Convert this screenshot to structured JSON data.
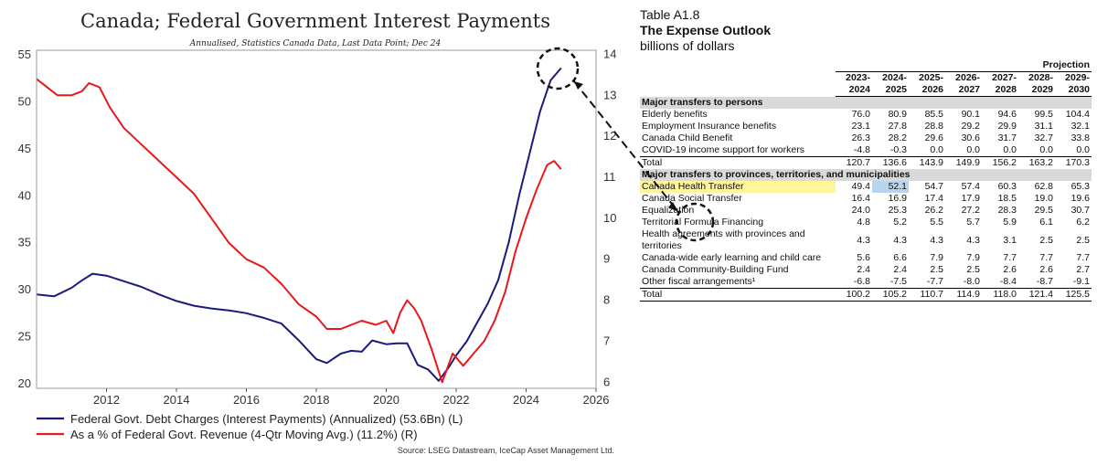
{
  "chart_data": {
    "type": "line",
    "title": "Canada; Federal Government Interest Payments",
    "subtitle": "Annualised, Statistics Canada Data, Last Data Point; Dec 24",
    "x_ticks": [
      2012,
      2014,
      2016,
      2018,
      2020,
      2022,
      2024,
      2026
    ],
    "xlim": [
      2010.0,
      2026.0
    ],
    "y_left_ticks": [
      20,
      25,
      30,
      35,
      40,
      45,
      50,
      55
    ],
    "ylim_left": [
      19.5,
      55.5
    ],
    "y_right_ticks": [
      6,
      7,
      8,
      9,
      10,
      11,
      12,
      13,
      14
    ],
    "ylim_right": [
      5.85,
      14.1
    ],
    "series": [
      {
        "name": "Federal Govt. Debt Charges (Interest Payments) (Annualized) (53.6Bn) (L)",
        "axis": "left",
        "color": "#1a1a7e",
        "points": [
          [
            2010.0,
            29.5
          ],
          [
            2010.5,
            29.3
          ],
          [
            2011.0,
            30.2
          ],
          [
            2011.3,
            31.0
          ],
          [
            2011.6,
            31.7
          ],
          [
            2012.0,
            31.5
          ],
          [
            2012.5,
            30.9
          ],
          [
            2013.0,
            30.3
          ],
          [
            2013.5,
            29.5
          ],
          [
            2014.0,
            28.8
          ],
          [
            2014.5,
            28.3
          ],
          [
            2015.0,
            28.0
          ],
          [
            2015.5,
            27.8
          ],
          [
            2016.0,
            27.5
          ],
          [
            2016.5,
            27.0
          ],
          [
            2017.0,
            26.4
          ],
          [
            2017.5,
            24.6
          ],
          [
            2018.0,
            22.6
          ],
          [
            2018.3,
            22.2
          ],
          [
            2018.7,
            23.2
          ],
          [
            2019.0,
            23.5
          ],
          [
            2019.3,
            23.4
          ],
          [
            2019.6,
            24.6
          ],
          [
            2020.0,
            24.2
          ],
          [
            2020.3,
            24.3
          ],
          [
            2020.6,
            24.3
          ],
          [
            2020.9,
            22.0
          ],
          [
            2021.2,
            21.5
          ],
          [
            2021.5,
            20.3
          ],
          [
            2021.8,
            21.8
          ],
          [
            2022.0,
            23.0
          ],
          [
            2022.3,
            24.5
          ],
          [
            2022.6,
            26.5
          ],
          [
            2022.9,
            28.5
          ],
          [
            2023.2,
            31.0
          ],
          [
            2023.5,
            35.0
          ],
          [
            2023.8,
            40.0
          ],
          [
            2024.1,
            44.5
          ],
          [
            2024.4,
            49.0
          ],
          [
            2024.7,
            52.3
          ],
          [
            2025.0,
            53.6
          ]
        ]
      },
      {
        "name": "As a % of Federal Govt. Revenue (4-Qtr Moving Avg.) (11.2%) (R)",
        "axis": "right",
        "color": "#e8191b",
        "points": [
          [
            2010.0,
            13.4
          ],
          [
            2010.3,
            13.2
          ],
          [
            2010.6,
            13.0
          ],
          [
            2011.0,
            13.0
          ],
          [
            2011.3,
            13.1
          ],
          [
            2011.5,
            13.3
          ],
          [
            2011.8,
            13.2
          ],
          [
            2012.1,
            12.7
          ],
          [
            2012.5,
            12.2
          ],
          [
            2013.0,
            11.8
          ],
          [
            2013.5,
            11.4
          ],
          [
            2014.0,
            11.0
          ],
          [
            2014.5,
            10.6
          ],
          [
            2015.0,
            10.0
          ],
          [
            2015.5,
            9.4
          ],
          [
            2016.0,
            9.0
          ],
          [
            2016.5,
            8.8
          ],
          [
            2017.0,
            8.4
          ],
          [
            2017.5,
            7.9
          ],
          [
            2018.0,
            7.6
          ],
          [
            2018.3,
            7.3
          ],
          [
            2018.7,
            7.3
          ],
          [
            2019.0,
            7.4
          ],
          [
            2019.3,
            7.5
          ],
          [
            2019.7,
            7.4
          ],
          [
            2020.0,
            7.5
          ],
          [
            2020.2,
            7.2
          ],
          [
            2020.4,
            7.7
          ],
          [
            2020.6,
            8.0
          ],
          [
            2020.8,
            7.8
          ],
          [
            2021.0,
            7.5
          ],
          [
            2021.3,
            6.8
          ],
          [
            2021.6,
            6.0
          ],
          [
            2021.9,
            6.7
          ],
          [
            2022.2,
            6.4
          ],
          [
            2022.5,
            6.7
          ],
          [
            2022.8,
            7.0
          ],
          [
            2023.1,
            7.5
          ],
          [
            2023.4,
            8.2
          ],
          [
            2023.7,
            9.2
          ],
          [
            2024.0,
            10.0
          ],
          [
            2024.3,
            10.7
          ],
          [
            2024.6,
            11.3
          ],
          [
            2024.8,
            11.4
          ],
          [
            2025.0,
            11.2
          ]
        ]
      }
    ],
    "legend_position": "bottom-left",
    "source": "Source: LSEG Datastream, IceCap Asset Management Ltd."
  },
  "table": {
    "title": "Table A1.8",
    "subtitle": "The Expense Outlook",
    "unit": "billions of dollars",
    "projection_label": "Projection",
    "columns": [
      "2023-2024",
      "2024-2025",
      "2025-2026",
      "2026-2027",
      "2027-2028",
      "2028-2029",
      "2029-2030"
    ],
    "sections": [
      {
        "heading": "Major transfers to persons",
        "rows": [
          {
            "label": "Elderly benefits",
            "values": [
              "76.0",
              "80.9",
              "85.5",
              "90.1",
              "94.6",
              "99.5",
              "104.4"
            ]
          },
          {
            "label": "Employment Insurance benefits",
            "values": [
              "23.1",
              "27.8",
              "28.8",
              "29.2",
              "29.9",
              "31.1",
              "32.1"
            ]
          },
          {
            "label": "Canada Child Benefit",
            "values": [
              "26.3",
              "28.2",
              "29.6",
              "30.6",
              "31.7",
              "32.7",
              "33.8"
            ]
          },
          {
            "label": "COVID-19 income support for workers",
            "values": [
              "-4.8",
              "-0.3",
              "0.0",
              "0.0",
              "0.0",
              "0.0",
              "0.0"
            ]
          }
        ],
        "total": {
          "label": "Total",
          "values": [
            "120.7",
            "136.6",
            "143.9",
            "149.9",
            "156.2",
            "163.2",
            "170.3"
          ]
        }
      },
      {
        "heading": "Major transfers to provinces, territories, and municipalities",
        "rows": [
          {
            "label": "Canada Health Transfer",
            "values": [
              "49.4",
              "52.1",
              "54.7",
              "57.4",
              "60.3",
              "62.8",
              "65.3"
            ]
          },
          {
            "label": "Canada Social Transfer",
            "values": [
              "16.4",
              "16.9",
              "17.4",
              "17.9",
              "18.5",
              "19.0",
              "19.6"
            ]
          },
          {
            "label": "Equalization",
            "values": [
              "24.0",
              "25.3",
              "26.2",
              "27.2",
              "28.3",
              "29.5",
              "30.7"
            ]
          },
          {
            "label": "Territorial Formula Financing",
            "values": [
              "4.8",
              "5.2",
              "5.5",
              "5.7",
              "5.9",
              "6.1",
              "6.2"
            ]
          },
          {
            "label": "Health agreements with provinces and territories",
            "values": [
              "4.3",
              "4.3",
              "4.3",
              "4.3",
              "3.1",
              "2.5",
              "2.5"
            ]
          },
          {
            "label": "Canada-wide early learning and child care",
            "values": [
              "5.6",
              "6.6",
              "7.9",
              "7.9",
              "7.7",
              "7.7",
              "7.7"
            ]
          },
          {
            "label": "Canada Community-Building Fund",
            "values": [
              "2.4",
              "2.4",
              "2.5",
              "2.5",
              "2.6",
              "2.6",
              "2.7"
            ]
          },
          {
            "label": "Other fiscal arrangements¹",
            "values": [
              "-6.8",
              "-7.5",
              "-7.7",
              "-8.0",
              "-8.4",
              "-8.7",
              "-9.1"
            ]
          }
        ],
        "total": {
          "label": "Total",
          "values": [
            "100.2",
            "105.2",
            "110.7",
            "114.9",
            "118.0",
            "121.4",
            "125.5"
          ]
        }
      }
    ]
  },
  "colors": {
    "debt_line": "#1a1a7e",
    "pct_line": "#e8191b",
    "highlight_label": "#fff59a",
    "highlight_value": "#b8d4f0",
    "section_bg": "#d9d9d9"
  }
}
